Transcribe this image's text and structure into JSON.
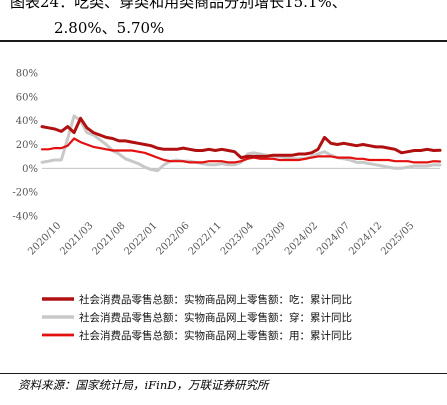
{
  "header": {
    "title_line1": "图表24：吃类、穿类和用类商品分别增长15.1%、",
    "title_line2": "2.80%、5.70%"
  },
  "source": "资料来源：国家统计局，iFinD，万联证券研究所",
  "chart_data": {
    "type": "line",
    "title": "",
    "ylim": [
      -40,
      80
    ],
    "y_ticks": [
      "80%",
      "60%",
      "40%",
      "20%",
      "0%",
      "-20%",
      "-40%"
    ],
    "y_tick_values": [
      80,
      60,
      40,
      20,
      0,
      -20,
      -40
    ],
    "x_ticks": [
      "2020/10",
      "2021/03",
      "2021/08",
      "2022/01",
      "2022/06",
      "2022/11",
      "2023/04",
      "2023/09",
      "2024/02",
      "2024/07",
      "2024/12",
      "2025/05"
    ],
    "x_start": "2020/07",
    "x_end": "2025/09",
    "legend_position": "bottom",
    "series": [
      {
        "name": "社会消费品零售总额：实物商品网上零售额：吃：累计同比",
        "color": "#b01010",
        "width": 3,
        "values": [
          35,
          34,
          33,
          31,
          35,
          30,
          42,
          34,
          30,
          28,
          26,
          25,
          23,
          23,
          22,
          21,
          20,
          19,
          17,
          16,
          16,
          16,
          17,
          16,
          15,
          15,
          16,
          15,
          16,
          15,
          14,
          9,
          10,
          10,
          10,
          10,
          11,
          11,
          11,
          11,
          12,
          12,
          13,
          16,
          26,
          21,
          20,
          21,
          20,
          19,
          20,
          19,
          18,
          18,
          17,
          16,
          13,
          14,
          15,
          15,
          16,
          15,
          15.1
        ]
      },
      {
        "name": "社会消费品零售总额：实物商品网上零售额：穿：累计同比",
        "color": "#c8c8c8",
        "width": 3,
        "values": [
          5,
          6,
          7,
          7,
          25,
          44,
          40,
          30,
          28,
          24,
          20,
          15,
          12,
          8,
          6,
          4,
          1,
          -1,
          -2,
          3,
          6,
          7,
          6,
          6,
          5,
          4,
          3,
          3,
          4,
          3,
          3,
          5,
          12,
          13,
          12,
          11,
          10,
          10,
          9,
          8,
          8,
          8,
          10,
          12,
          14,
          11,
          9,
          8,
          7,
          5,
          5,
          4,
          3,
          2,
          1,
          0,
          0,
          1,
          2,
          2,
          2,
          3,
          2.8
        ]
      },
      {
        "name": "社会消费品零售总额：实物商品网上零售额：用：累计同比",
        "color": "#e31010",
        "width": 2.2,
        "values": [
          16,
          16,
          17,
          17,
          19,
          25,
          22,
          20,
          18,
          17,
          16,
          15,
          15,
          15,
          15,
          14,
          13,
          11,
          9,
          7,
          6,
          6,
          6,
          5,
          5,
          5,
          6,
          6,
          6,
          5,
          5,
          6,
          8,
          9,
          8,
          8,
          8,
          7,
          7,
          7,
          7,
          8,
          9,
          10,
          10,
          10,
          9,
          9,
          9,
          8,
          8,
          7,
          7,
          7,
          7,
          6,
          6,
          6,
          5,
          5,
          5,
          6,
          5.7
        ]
      }
    ]
  }
}
